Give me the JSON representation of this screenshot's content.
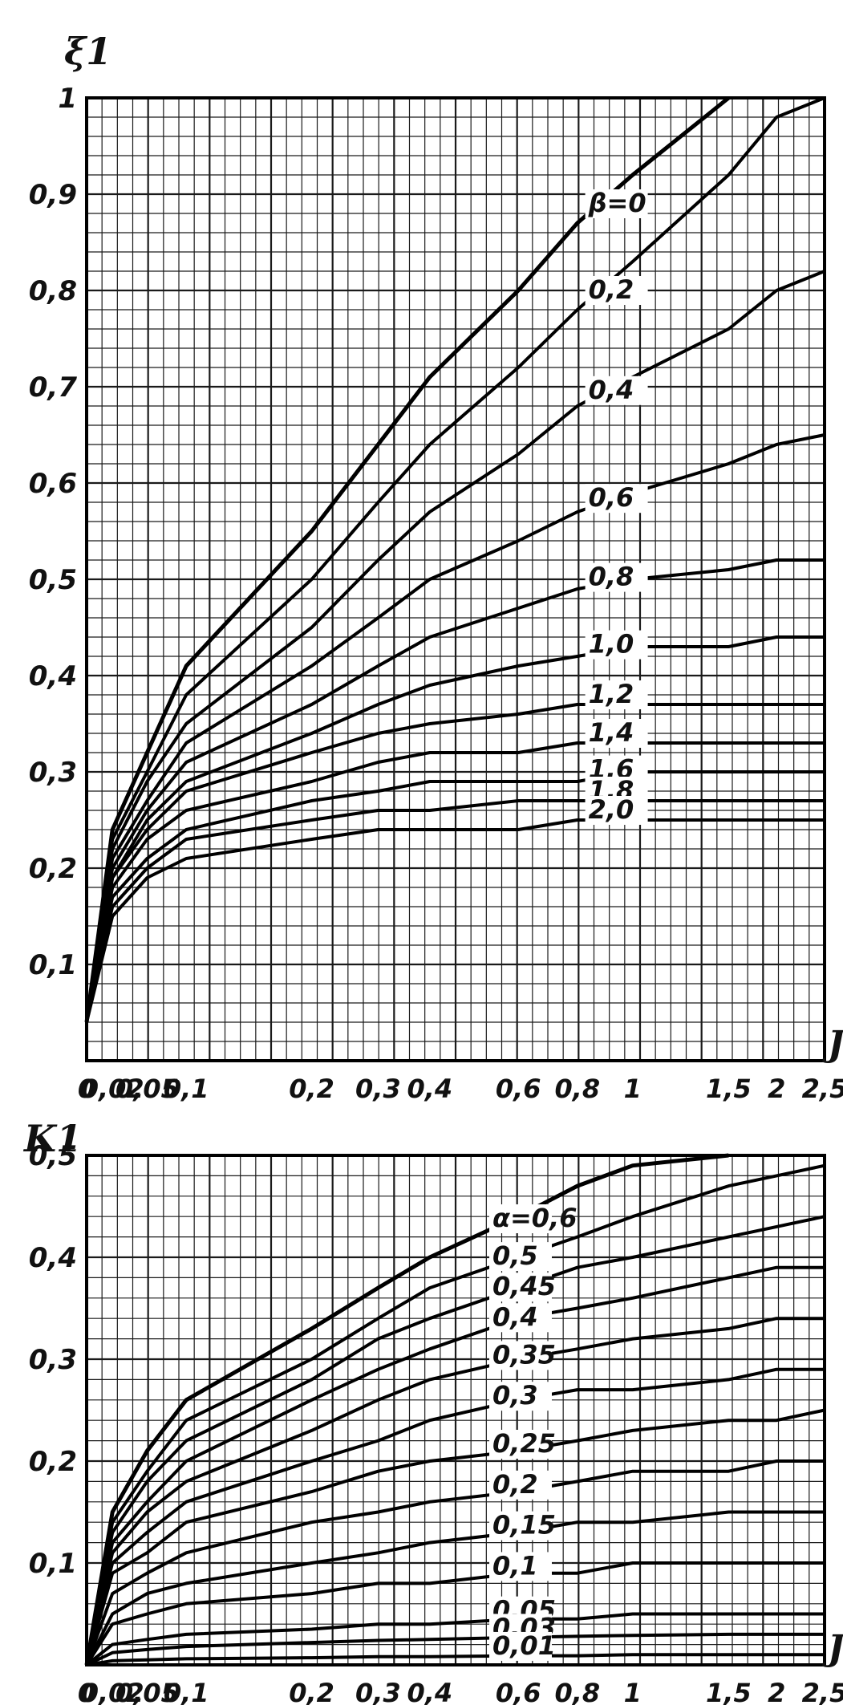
{
  "chart_data": [
    {
      "type": "line",
      "title": "",
      "xlabel": "J",
      "ylabel": "ξ1",
      "x_scale": "nonlinear",
      "xlim": [
        0,
        2.5
      ],
      "ylim": [
        0,
        1
      ],
      "grid": true,
      "legend": "labels on curves",
      "x_ticks": [
        "0",
        "0,02",
        "0,05",
        "0,1",
        "0,2",
        "0,3",
        "0,4",
        "0,6",
        "0,8",
        "1",
        "1,5",
        "2",
        "2,5"
      ],
      "y_ticks": [
        "0,1",
        "0,2",
        "0,3",
        "0,4",
        "0,5",
        "0,6",
        "0,7",
        "0,8",
        "0,9",
        "1"
      ],
      "param_symbol": "β",
      "x": [
        0,
        0.02,
        0.05,
        0.1,
        0.2,
        0.3,
        0.4,
        0.6,
        0.8,
        1,
        1.5,
        2,
        2.5
      ],
      "series": [
        {
          "name": "β=0",
          "values": [
            0.04,
            0.24,
            0.32,
            0.41,
            0.55,
            0.64,
            0.71,
            0.8,
            0.87,
            0.92,
            1.0,
            null,
            null
          ]
        },
        {
          "name": "0,2",
          "values": [
            0.04,
            0.23,
            0.3,
            0.38,
            0.5,
            0.58,
            0.64,
            0.72,
            0.78,
            0.83,
            0.92,
            0.98,
            1.0
          ]
        },
        {
          "name": "0,4",
          "values": [
            0.04,
            0.22,
            0.29,
            0.35,
            0.45,
            0.52,
            0.57,
            0.63,
            0.68,
            0.71,
            0.76,
            0.8,
            0.82
          ]
        },
        {
          "name": "0,6",
          "values": [
            0.04,
            0.21,
            0.27,
            0.33,
            0.41,
            0.46,
            0.5,
            0.54,
            0.57,
            0.59,
            0.62,
            0.64,
            0.65
          ]
        },
        {
          "name": "0,8",
          "values": [
            0.04,
            0.2,
            0.26,
            0.31,
            0.37,
            0.41,
            0.44,
            0.47,
            0.49,
            0.5,
            0.51,
            0.52,
            0.52
          ]
        },
        {
          "name": "1,0",
          "values": [
            0.04,
            0.19,
            0.25,
            0.29,
            0.34,
            0.37,
            0.39,
            0.41,
            0.42,
            0.43,
            0.43,
            0.44,
            0.44
          ]
        },
        {
          "name": "1,2",
          "values": [
            0.04,
            0.19,
            0.24,
            0.28,
            0.32,
            0.34,
            0.35,
            0.36,
            0.37,
            0.37,
            0.37,
            0.37,
            0.37
          ]
        },
        {
          "name": "1,4",
          "values": [
            0.04,
            0.18,
            0.23,
            0.26,
            0.29,
            0.31,
            0.32,
            0.32,
            0.33,
            0.33,
            0.33,
            0.33,
            0.33
          ]
        },
        {
          "name": "1,6",
          "values": [
            0.04,
            0.17,
            0.21,
            0.24,
            0.27,
            0.28,
            0.29,
            0.29,
            0.29,
            0.3,
            0.3,
            0.3,
            0.3
          ]
        },
        {
          "name": "1,8",
          "values": [
            0.04,
            0.16,
            0.2,
            0.23,
            0.25,
            0.26,
            0.26,
            0.27,
            0.27,
            0.27,
            0.27,
            0.27,
            0.27
          ]
        },
        {
          "name": "2,0",
          "values": [
            0.04,
            0.15,
            0.19,
            0.21,
            0.23,
            0.24,
            0.24,
            0.24,
            0.25,
            0.25,
            0.25,
            0.25,
            0.25
          ]
        }
      ]
    },
    {
      "type": "line",
      "title": "",
      "xlabel": "J",
      "ylabel": "K1",
      "x_scale": "nonlinear",
      "xlim": [
        0,
        2.5
      ],
      "ylim": [
        0,
        0.5
      ],
      "grid": true,
      "legend": "labels on curves",
      "x_ticks": [
        "0",
        "0,02",
        "0,05",
        "0,1",
        "0,2",
        "0,3",
        "0,4",
        "0,6",
        "0,8",
        "1",
        "1,5",
        "2",
        "2,5"
      ],
      "y_ticks": [
        "0,1",
        "0,2",
        "0,3",
        "0,4",
        "0,5"
      ],
      "param_symbol": "α",
      "x": [
        0,
        0.02,
        0.05,
        0.1,
        0.2,
        0.3,
        0.4,
        0.6,
        0.8,
        1,
        1.5,
        2,
        2.5
      ],
      "series": [
        {
          "name": "α=0,6",
          "values": [
            0.0,
            0.15,
            0.21,
            0.26,
            0.33,
            0.37,
            0.4,
            0.44,
            0.47,
            0.49,
            0.5,
            null,
            null
          ]
        },
        {
          "name": "0,5",
          "values": [
            0.0,
            0.14,
            0.19,
            0.24,
            0.3,
            0.34,
            0.37,
            0.4,
            0.42,
            0.44,
            0.47,
            0.48,
            0.49
          ]
        },
        {
          "name": "0,45",
          "values": [
            0.0,
            0.13,
            0.18,
            0.22,
            0.28,
            0.32,
            0.34,
            0.37,
            0.39,
            0.4,
            0.42,
            0.43,
            0.44
          ]
        },
        {
          "name": "0,4",
          "values": [
            0.0,
            0.12,
            0.16,
            0.2,
            0.26,
            0.29,
            0.31,
            0.34,
            0.35,
            0.36,
            0.38,
            0.39,
            0.39
          ]
        },
        {
          "name": "0,35",
          "values": [
            0.0,
            0.11,
            0.15,
            0.18,
            0.23,
            0.26,
            0.28,
            0.3,
            0.31,
            0.32,
            0.33,
            0.34,
            0.34
          ]
        },
        {
          "name": "0,3",
          "values": [
            0.0,
            0.1,
            0.13,
            0.16,
            0.2,
            0.22,
            0.24,
            0.26,
            0.27,
            0.27,
            0.28,
            0.29,
            0.29
          ]
        },
        {
          "name": "0,25",
          "values": [
            0.0,
            0.09,
            0.11,
            0.14,
            0.17,
            0.19,
            0.2,
            0.21,
            0.22,
            0.23,
            0.24,
            0.24,
            0.25
          ]
        },
        {
          "name": "0,2",
          "values": [
            0.0,
            0.07,
            0.09,
            0.11,
            0.14,
            0.15,
            0.16,
            0.17,
            0.18,
            0.19,
            0.19,
            0.2,
            0.2
          ]
        },
        {
          "name": "0,15",
          "values": [
            0.0,
            0.05,
            0.07,
            0.08,
            0.1,
            0.11,
            0.12,
            0.13,
            0.14,
            0.14,
            0.15,
            0.15,
            0.15
          ]
        },
        {
          "name": "0,1",
          "values": [
            0.0,
            0.04,
            0.05,
            0.06,
            0.07,
            0.08,
            0.08,
            0.09,
            0.09,
            0.1,
            0.1,
            0.1,
            0.1
          ]
        },
        {
          "name": "0,05",
          "values": [
            0.0,
            0.02,
            0.025,
            0.03,
            0.035,
            0.04,
            0.04,
            0.045,
            0.045,
            0.05,
            0.05,
            0.05,
            0.05
          ]
        },
        {
          "name": "0,03",
          "values": [
            0.0,
            0.012,
            0.015,
            0.018,
            0.022,
            0.024,
            0.025,
            0.027,
            0.028,
            0.029,
            0.03,
            0.03,
            0.03
          ]
        },
        {
          "name": "0,01",
          "values": [
            0.0,
            0.004,
            0.005,
            0.006,
            0.007,
            0.008,
            0.008,
            0.009,
            0.009,
            0.01,
            0.01,
            0.01,
            0.01
          ]
        }
      ]
    }
  ]
}
